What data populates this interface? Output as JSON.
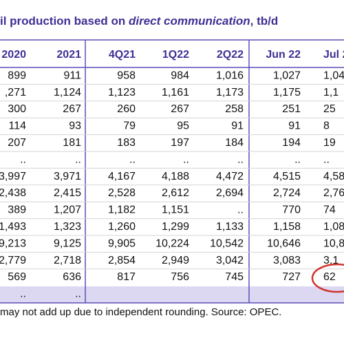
{
  "title": {
    "before": "il production based on ",
    "italic": "direct communication",
    "after": ", tb/d"
  },
  "table": {
    "header": [
      "2020",
      "2021",
      "4Q21",
      "1Q22",
      "2Q22",
      "Jun 22",
      "Jul 2"
    ],
    "rows": [
      [
        "899",
        "911",
        "958",
        "984",
        "1,016",
        "1,027",
        "1,04"
      ],
      [
        ",271",
        "1,124",
        "1,123",
        "1,161",
        "1,173",
        "1,175",
        "1,1"
      ],
      [
        "300",
        "267",
        "260",
        "267",
        "258",
        "251",
        "25"
      ],
      [
        "114",
        "93",
        "79",
        "95",
        "91",
        "91",
        "8"
      ],
      [
        "207",
        "181",
        "183",
        "197",
        "184",
        "194",
        "19"
      ],
      [
        "..",
        "..",
        "..",
        "..",
        "..",
        "..",
        ".."
      ],
      [
        "3,997",
        "3,971",
        "4,167",
        "4,188",
        "4,472",
        "4,515",
        "4,58"
      ],
      [
        "2,438",
        "2,415",
        "2,528",
        "2,612",
        "2,694",
        "2,724",
        "2,76"
      ],
      [
        "389",
        "1,207",
        "1,182",
        "1,151",
        "..",
        "770",
        "74"
      ],
      [
        "1,493",
        "1,323",
        "1,260",
        "1,299",
        "1,133",
        "1,158",
        "1,08"
      ],
      [
        "9,213",
        "9,125",
        "9,905",
        "10,224",
        "10,542",
        "10,646",
        "10,81"
      ],
      [
        "2,779",
        "2,718",
        "2,854",
        "2,949",
        "3,042",
        "3,083",
        "3,1"
      ],
      [
        "569",
        "636",
        "817",
        "756",
        "745",
        "727",
        "62"
      ],
      [
        "..",
        ".."
      ]
    ]
  },
  "footer": "may not add up due to independent rounding. Source: OPEC."
}
